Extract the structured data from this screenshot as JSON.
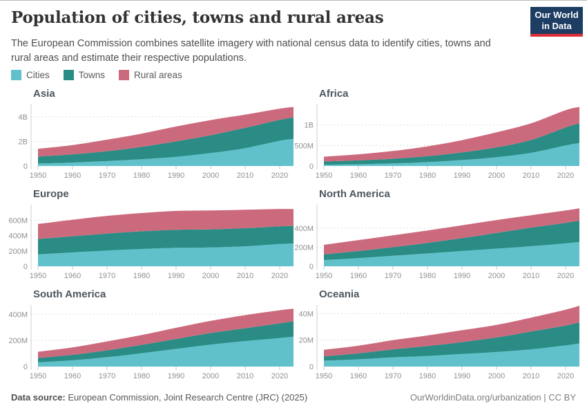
{
  "header": {
    "title": "Population of cities, towns and rural areas",
    "subtitle": "The European Commission combines satellite imagery with national census data to identify cities, towns and rural areas and estimate their respective populations.",
    "logo": {
      "line1": "Our World",
      "line2": "in Data",
      "bg_color": "#1d3d63",
      "accent_color": "#dc2e36"
    }
  },
  "legend": {
    "items": [
      {
        "label": "Cities",
        "color": "#60c1cb"
      },
      {
        "label": "Towns",
        "color": "#2a8c85"
      },
      {
        "label": "Rural areas",
        "color": "#cc6a7d"
      }
    ]
  },
  "chart_data": [
    {
      "type": "area",
      "stacked": true,
      "title": "Asia",
      "unit": "millions of people",
      "x": [
        1950,
        1960,
        1970,
        1980,
        1990,
        2000,
        2010,
        2020,
        2025
      ],
      "xlim": [
        1948,
        2024
      ],
      "xticks": [
        1950,
        1960,
        1970,
        1980,
        1990,
        2000,
        2010,
        2020
      ],
      "ymax": 5000,
      "yticks": [
        {
          "v": 0,
          "label": "0"
        },
        {
          "v": 2000,
          "label": "2B"
        },
        {
          "v": 4000,
          "label": "4B"
        }
      ],
      "series": [
        {
          "name": "Cities",
          "values": [
            200,
            280,
            400,
            550,
            750,
            1050,
            1450,
            2050,
            2200
          ]
        },
        {
          "name": "Towns",
          "values": [
            570,
            670,
            800,
            1000,
            1250,
            1450,
            1650,
            1700,
            1750
          ]
        },
        {
          "name": "Rural areas",
          "values": [
            630,
            750,
            940,
            1080,
            1210,
            1230,
            1070,
            910,
            850
          ]
        }
      ]
    },
    {
      "type": "area",
      "stacked": true,
      "title": "Africa",
      "unit": "millions of people",
      "x": [
        1950,
        1960,
        1970,
        1980,
        1990,
        2000,
        2010,
        2020,
        2025
      ],
      "xlim": [
        1948,
        2024
      ],
      "xticks": [
        1950,
        1960,
        1970,
        1980,
        1990,
        2000,
        2010,
        2020
      ],
      "ymax": 1500,
      "yticks": [
        {
          "v": 0,
          "label": "0"
        },
        {
          "v": 500,
          "label": "500M"
        },
        {
          "v": 1000,
          "label": "1B"
        }
      ],
      "series": [
        {
          "name": "Cities",
          "values": [
            30,
            42,
            62,
            95,
            145,
            215,
            320,
            500,
            560
          ]
        },
        {
          "name": "Towns",
          "values": [
            80,
            95,
            115,
            145,
            185,
            240,
            315,
            440,
            480
          ]
        },
        {
          "name": "Rural areas",
          "values": [
            118,
            148,
            188,
            238,
            300,
            365,
            405,
            420,
            400
          ]
        }
      ]
    },
    {
      "type": "area",
      "stacked": true,
      "title": "Europe",
      "unit": "millions of people",
      "x": [
        1950,
        1960,
        1970,
        1980,
        1990,
        2000,
        2010,
        2020,
        2025
      ],
      "xlim": [
        1948,
        2024
      ],
      "xticks": [
        1950,
        1960,
        1970,
        1980,
        1990,
        2000,
        2010,
        2020
      ],
      "ymax": 800,
      "yticks": [
        {
          "v": 0,
          "label": "0"
        },
        {
          "v": 200,
          "label": "200M"
        },
        {
          "v": 400,
          "label": "400M"
        },
        {
          "v": 600,
          "label": "600M"
        }
      ],
      "series": [
        {
          "name": "Cities",
          "values": [
            155,
            180,
            205,
            225,
            240,
            245,
            260,
            290,
            295
          ]
        },
        {
          "name": "Towns",
          "values": [
            200,
            210,
            220,
            230,
            235,
            235,
            235,
            230,
            230
          ]
        },
        {
          "name": "Rural areas",
          "values": [
            195,
            215,
            230,
            237,
            245,
            246,
            240,
            225,
            219
          ]
        }
      ]
    },
    {
      "type": "area",
      "stacked": true,
      "title": "North America",
      "unit": "millions of people",
      "x": [
        1950,
        1960,
        1970,
        1980,
        1990,
        2000,
        2010,
        2020,
        2025
      ],
      "xlim": [
        1948,
        2024
      ],
      "xticks": [
        1950,
        1960,
        1970,
        1980,
        1990,
        2000,
        2010,
        2020
      ],
      "ymax": 645,
      "yticks": [
        {
          "v": 0,
          "label": "0"
        },
        {
          "v": 200,
          "label": "200M"
        },
        {
          "v": 400,
          "label": "400M"
        }
      ],
      "series": [
        {
          "name": "Cities",
          "values": [
            65,
            85,
            110,
            135,
            160,
            185,
            210,
            240,
            255
          ]
        },
        {
          "name": "Towns",
          "values": [
            60,
            75,
            90,
            110,
            135,
            165,
            195,
            215,
            225
          ]
        },
        {
          "name": "Rural areas",
          "values": [
            100,
            115,
            125,
            130,
            135,
            135,
            130,
            130,
            128
          ]
        }
      ]
    },
    {
      "type": "area",
      "stacked": true,
      "title": "South America",
      "unit": "millions of people",
      "x": [
        1950,
        1960,
        1970,
        1980,
        1990,
        2000,
        2010,
        2020,
        2025
      ],
      "xlim": [
        1948,
        2024
      ],
      "xticks": [
        1950,
        1960,
        1970,
        1980,
        1990,
        2000,
        2010,
        2020
      ],
      "ymax": 470,
      "yticks": [
        {
          "v": 0,
          "label": "0"
        },
        {
          "v": 200,
          "label": "200M"
        },
        {
          "v": 400,
          "label": "400M"
        }
      ],
      "series": [
        {
          "name": "Cities",
          "values": [
            32,
            48,
            72,
            102,
            135,
            168,
            195,
            218,
            228
          ]
        },
        {
          "name": "Towns",
          "values": [
            34,
            42,
            52,
            64,
            76,
            88,
            98,
            112,
            118
          ]
        },
        {
          "name": "Rural areas",
          "values": [
            47,
            57,
            68,
            75,
            85,
            93,
            100,
            100,
            96
          ]
        }
      ]
    },
    {
      "type": "area",
      "stacked": true,
      "title": "Oceania",
      "unit": "millions of people",
      "x": [
        1950,
        1960,
        1970,
        1980,
        1990,
        2000,
        2010,
        2020,
        2025
      ],
      "xlim": [
        1948,
        2024
      ],
      "xticks": [
        1950,
        1960,
        1970,
        1980,
        1990,
        2000,
        2010,
        2020
      ],
      "ymax": 46.5,
      "yticks": [
        {
          "v": 0,
          "label": "0"
        },
        {
          "v": 20,
          "label": "20M"
        },
        {
          "v": 40,
          "label": "40M"
        }
      ],
      "series": [
        {
          "name": "Cities",
          "values": [
            4.5,
            5.5,
            7,
            8,
            9.5,
            11,
            13,
            16,
            17.5
          ]
        },
        {
          "name": "Towns",
          "values": [
            3.3,
            4.5,
            6,
            7.5,
            9,
            11,
            13.5,
            15,
            16
          ]
        },
        {
          "name": "Rural areas",
          "values": [
            4.9,
            5.8,
            7,
            8,
            9,
            9.5,
            10.5,
            12,
            12.5
          ]
        }
      ]
    }
  ],
  "footer": {
    "source_label": "Data source:",
    "source_text": " European Commission, Joint Research Centre (JRC) (2025)",
    "link": "OurWorldinData.org/urbanization",
    "divider": " | ",
    "license": "CC BY"
  }
}
